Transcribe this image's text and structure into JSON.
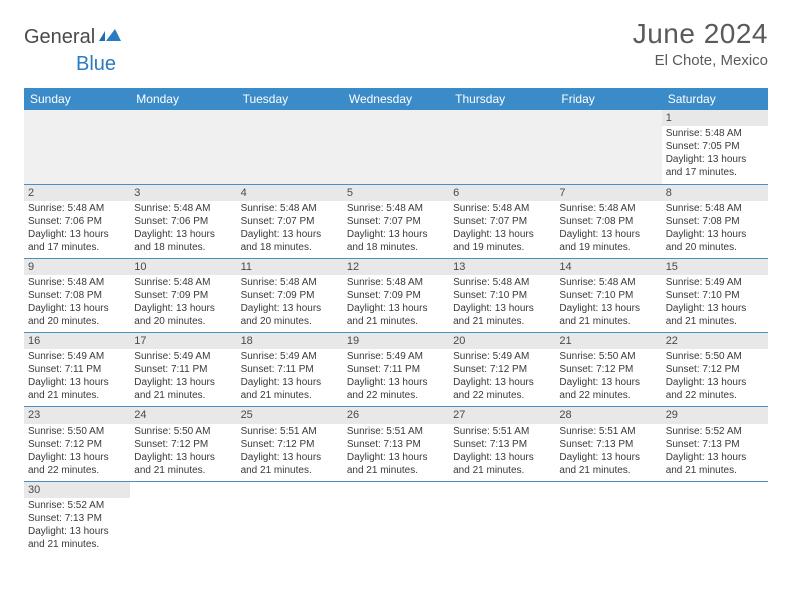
{
  "logo": {
    "general": "General",
    "blue": "Blue"
  },
  "title": "June 2024",
  "location": "El Chote, Mexico",
  "header_color": "#3b8bc9",
  "daynum_bg": "#e8e8e8",
  "border_color": "#4a8fc4",
  "days_of_week": [
    "Sunday",
    "Monday",
    "Tuesday",
    "Wednesday",
    "Thursday",
    "Friday",
    "Saturday"
  ],
  "weeks": [
    [
      null,
      null,
      null,
      null,
      null,
      null,
      {
        "n": "1",
        "sunrise": "5:48 AM",
        "sunset": "7:05 PM",
        "daylight": "13 hours and 17 minutes."
      }
    ],
    [
      {
        "n": "2",
        "sunrise": "5:48 AM",
        "sunset": "7:06 PM",
        "daylight": "13 hours and 17 minutes."
      },
      {
        "n": "3",
        "sunrise": "5:48 AM",
        "sunset": "7:06 PM",
        "daylight": "13 hours and 18 minutes."
      },
      {
        "n": "4",
        "sunrise": "5:48 AM",
        "sunset": "7:07 PM",
        "daylight": "13 hours and 18 minutes."
      },
      {
        "n": "5",
        "sunrise": "5:48 AM",
        "sunset": "7:07 PM",
        "daylight": "13 hours and 18 minutes."
      },
      {
        "n": "6",
        "sunrise": "5:48 AM",
        "sunset": "7:07 PM",
        "daylight": "13 hours and 19 minutes."
      },
      {
        "n": "7",
        "sunrise": "5:48 AM",
        "sunset": "7:08 PM",
        "daylight": "13 hours and 19 minutes."
      },
      {
        "n": "8",
        "sunrise": "5:48 AM",
        "sunset": "7:08 PM",
        "daylight": "13 hours and 20 minutes."
      }
    ],
    [
      {
        "n": "9",
        "sunrise": "5:48 AM",
        "sunset": "7:08 PM",
        "daylight": "13 hours and 20 minutes."
      },
      {
        "n": "10",
        "sunrise": "5:48 AM",
        "sunset": "7:09 PM",
        "daylight": "13 hours and 20 minutes."
      },
      {
        "n": "11",
        "sunrise": "5:48 AM",
        "sunset": "7:09 PM",
        "daylight": "13 hours and 20 minutes."
      },
      {
        "n": "12",
        "sunrise": "5:48 AM",
        "sunset": "7:09 PM",
        "daylight": "13 hours and 21 minutes."
      },
      {
        "n": "13",
        "sunrise": "5:48 AM",
        "sunset": "7:10 PM",
        "daylight": "13 hours and 21 minutes."
      },
      {
        "n": "14",
        "sunrise": "5:48 AM",
        "sunset": "7:10 PM",
        "daylight": "13 hours and 21 minutes."
      },
      {
        "n": "15",
        "sunrise": "5:49 AM",
        "sunset": "7:10 PM",
        "daylight": "13 hours and 21 minutes."
      }
    ],
    [
      {
        "n": "16",
        "sunrise": "5:49 AM",
        "sunset": "7:11 PM",
        "daylight": "13 hours and 21 minutes."
      },
      {
        "n": "17",
        "sunrise": "5:49 AM",
        "sunset": "7:11 PM",
        "daylight": "13 hours and 21 minutes."
      },
      {
        "n": "18",
        "sunrise": "5:49 AM",
        "sunset": "7:11 PM",
        "daylight": "13 hours and 21 minutes."
      },
      {
        "n": "19",
        "sunrise": "5:49 AM",
        "sunset": "7:11 PM",
        "daylight": "13 hours and 22 minutes."
      },
      {
        "n": "20",
        "sunrise": "5:49 AM",
        "sunset": "7:12 PM",
        "daylight": "13 hours and 22 minutes."
      },
      {
        "n": "21",
        "sunrise": "5:50 AM",
        "sunset": "7:12 PM",
        "daylight": "13 hours and 22 minutes."
      },
      {
        "n": "22",
        "sunrise": "5:50 AM",
        "sunset": "7:12 PM",
        "daylight": "13 hours and 22 minutes."
      }
    ],
    [
      {
        "n": "23",
        "sunrise": "5:50 AM",
        "sunset": "7:12 PM",
        "daylight": "13 hours and 22 minutes."
      },
      {
        "n": "24",
        "sunrise": "5:50 AM",
        "sunset": "7:12 PM",
        "daylight": "13 hours and 21 minutes."
      },
      {
        "n": "25",
        "sunrise": "5:51 AM",
        "sunset": "7:12 PM",
        "daylight": "13 hours and 21 minutes."
      },
      {
        "n": "26",
        "sunrise": "5:51 AM",
        "sunset": "7:13 PM",
        "daylight": "13 hours and 21 minutes."
      },
      {
        "n": "27",
        "sunrise": "5:51 AM",
        "sunset": "7:13 PM",
        "daylight": "13 hours and 21 minutes."
      },
      {
        "n": "28",
        "sunrise": "5:51 AM",
        "sunset": "7:13 PM",
        "daylight": "13 hours and 21 minutes."
      },
      {
        "n": "29",
        "sunrise": "5:52 AM",
        "sunset": "7:13 PM",
        "daylight": "13 hours and 21 minutes."
      }
    ],
    [
      {
        "n": "30",
        "sunrise": "5:52 AM",
        "sunset": "7:13 PM",
        "daylight": "13 hours and 21 minutes."
      },
      null,
      null,
      null,
      null,
      null,
      null
    ]
  ],
  "labels": {
    "sunrise_prefix": "Sunrise: ",
    "sunset_prefix": "Sunset: ",
    "daylight_prefix": "Daylight: "
  }
}
